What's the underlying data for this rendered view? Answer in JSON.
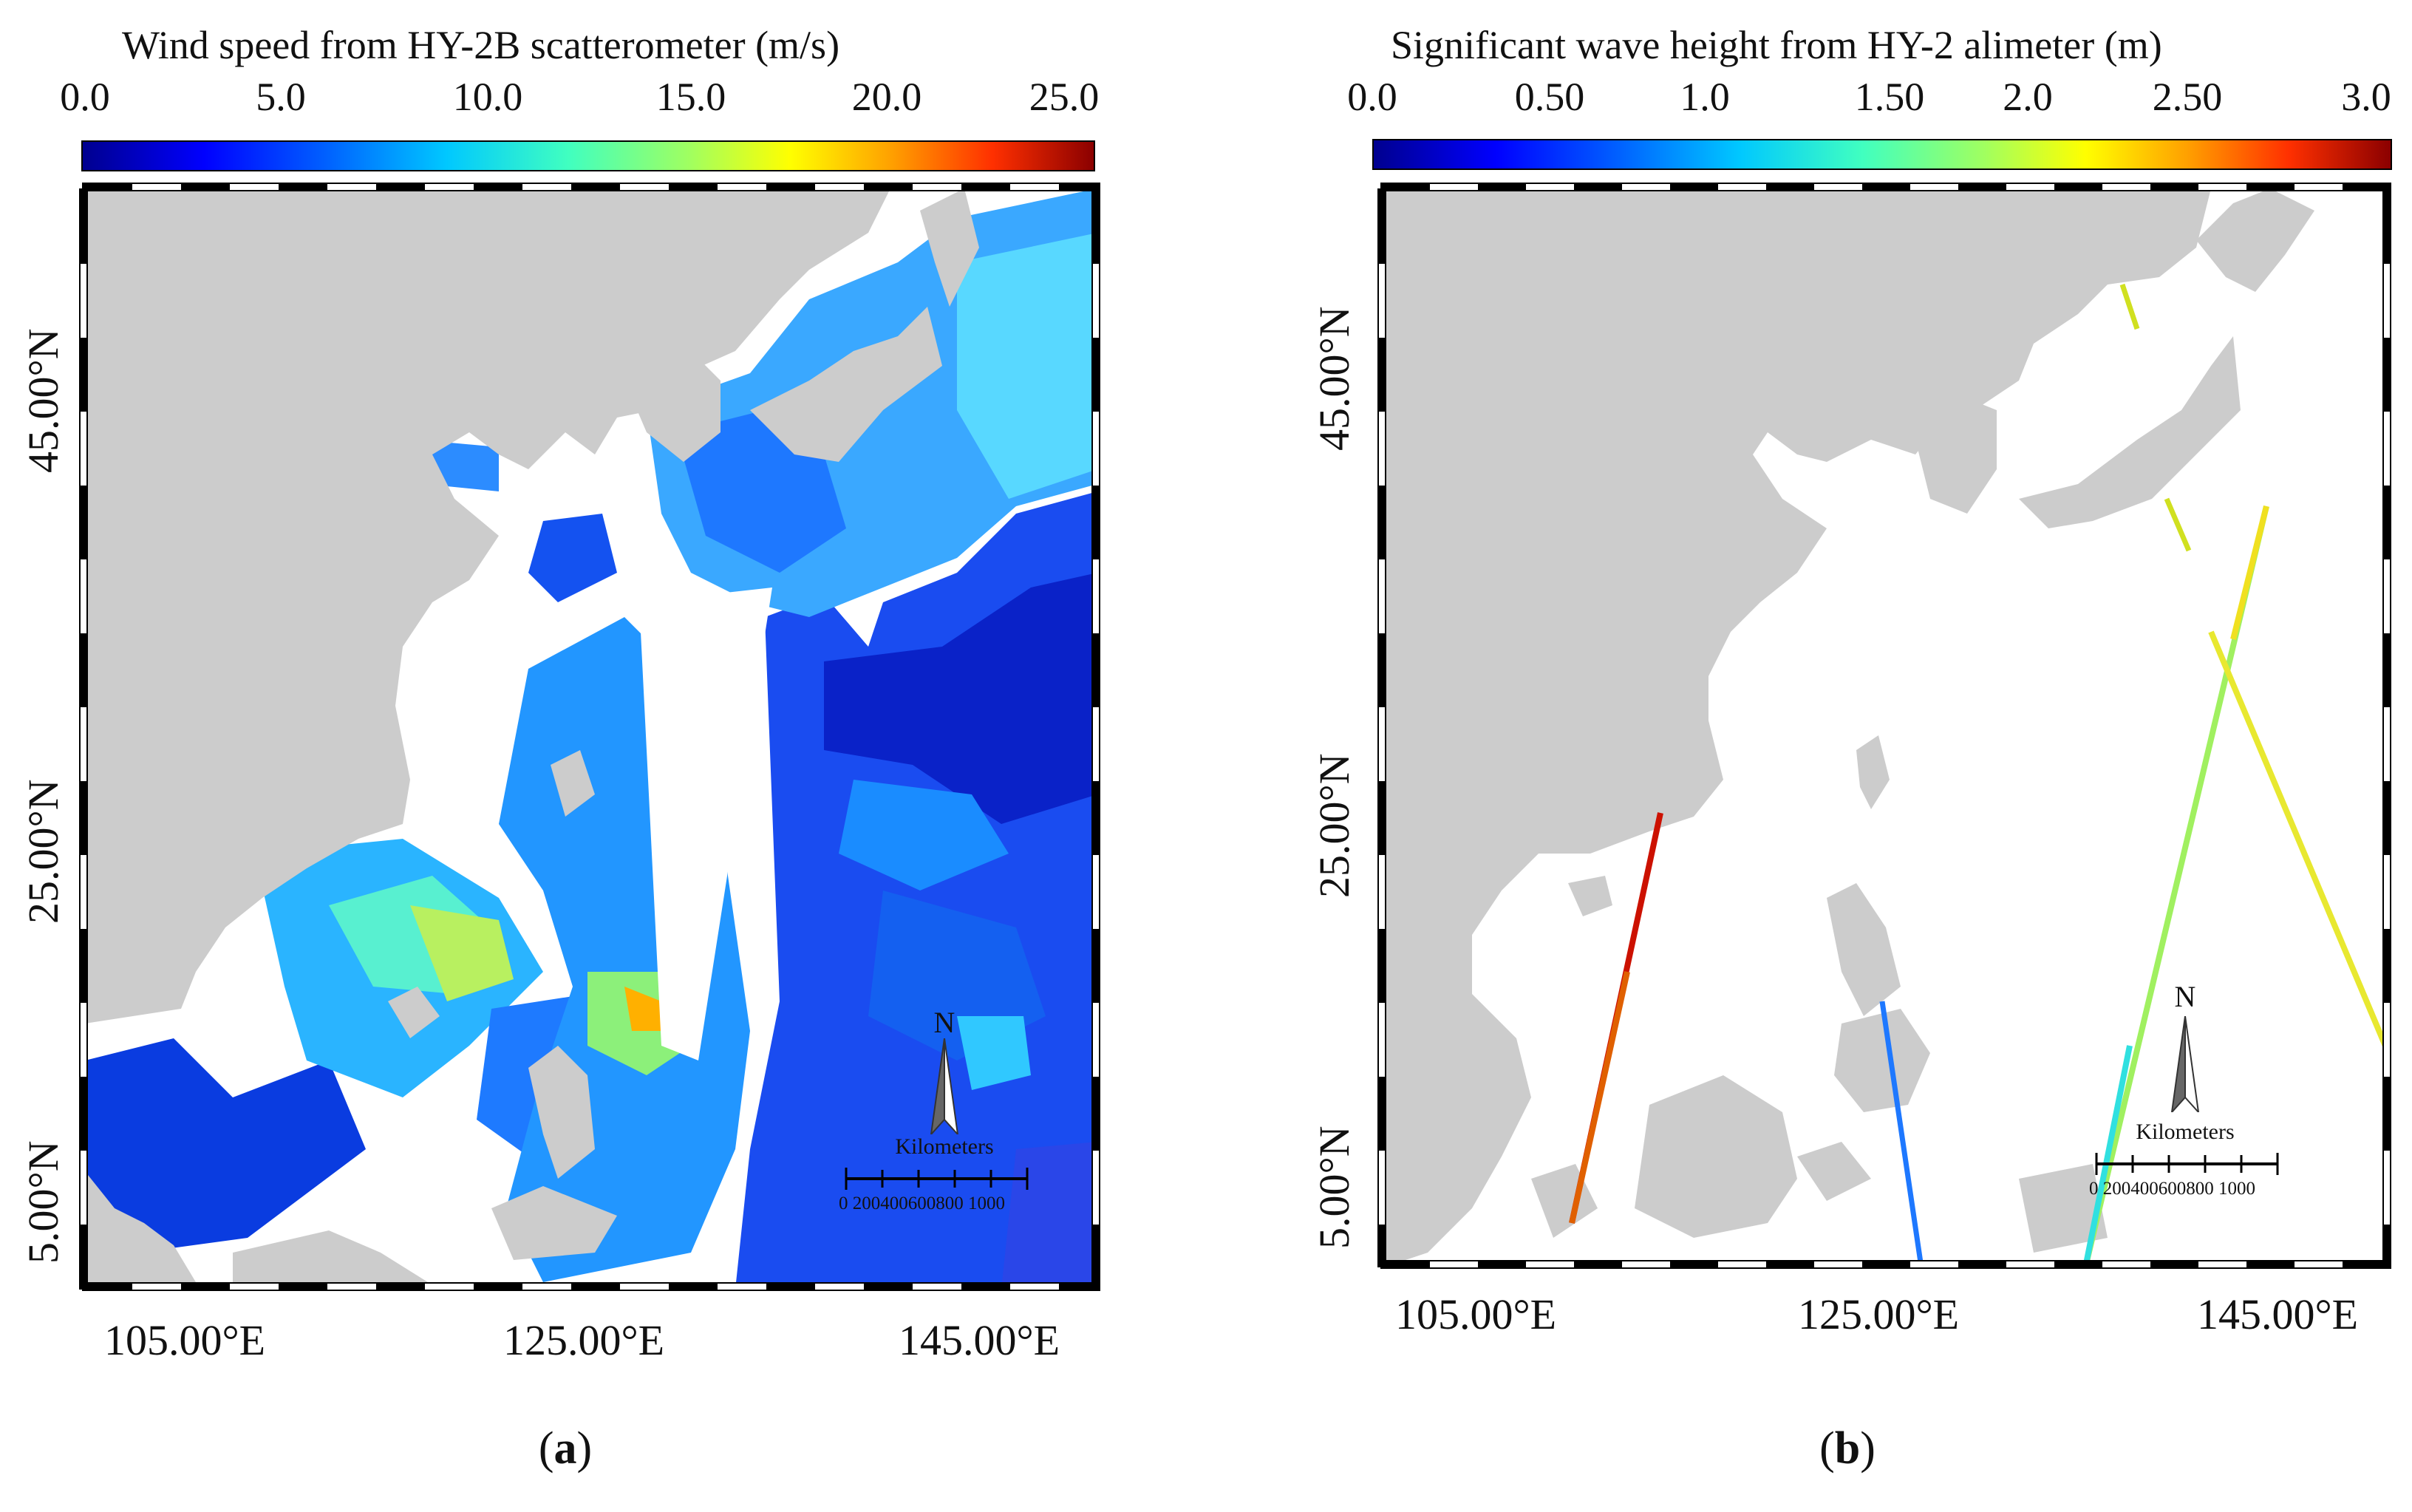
{
  "panel_a": {
    "colorbar": {
      "title": "Wind speed from HY-2B scatterometer (m/s)",
      "ticks": [
        "0.0",
        "5.0",
        "10.0",
        "15.0",
        "20.0",
        "25.0"
      ],
      "range": [
        0,
        25
      ]
    },
    "lat_labels": [
      "45.00°N",
      "25.00°N",
      "5.00°N"
    ],
    "lon_labels": [
      "105.00°E",
      "125.00°E",
      "145.00°E"
    ],
    "north_letter": "N",
    "scale": {
      "title": "Kilometers",
      "ticks": "0  200400600800 1000"
    },
    "caption_paren_open": "(",
    "caption_letter": "a",
    "caption_paren_close": ")"
  },
  "panel_b": {
    "colorbar": {
      "title": "Significant wave height from HY-2 alimeter (m)",
      "ticks": [
        "0.0",
        "0.50",
        "1.0",
        "1.50",
        "2.0",
        "2.50",
        "3.0"
      ],
      "range": [
        0,
        3
      ]
    },
    "lat_labels": [
      "45.00°N",
      "25.00°N",
      "5.00°N"
    ],
    "lon_labels": [
      "105.00°E",
      "125.00°E",
      "145.00°E"
    ],
    "north_letter": "N",
    "scale": {
      "title": "Kilometers",
      "ticks": "0  200400600800 1000"
    },
    "caption_paren_open": "(",
    "caption_letter": "b",
    "caption_paren_close": ")"
  },
  "colors": {
    "land": "#cccccc",
    "no_data": "#ffffff",
    "low": "#0000cc",
    "high": "#8b0000"
  }
}
